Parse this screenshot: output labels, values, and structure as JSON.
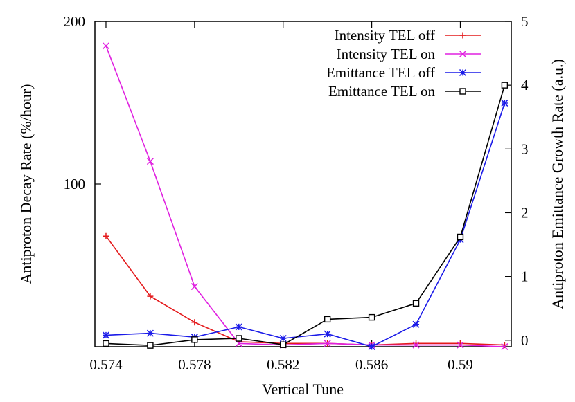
{
  "chart_data": {
    "type": "line",
    "xlabel": "Vertical Tune",
    "ylabel_left": "Antiproton Decay Rate (%/hour)",
    "ylabel_right": "Antiproton Emittance Growth Rate (a.u.)",
    "xlim": [
      0.5735,
      0.5923
    ],
    "ylim_left": [
      0,
      200
    ],
    "ylim_right": [
      -0.1,
      5
    ],
    "xticks": [
      0.574,
      0.578,
      0.582,
      0.586,
      0.59
    ],
    "xtick_labels": [
      "0.574",
      "0.578",
      "0.582",
      "0.586",
      "0.59"
    ],
    "yticks_left": [
      100,
      200
    ],
    "ytick_labels_left": [
      "100",
      "200"
    ],
    "yticks_right": [
      0,
      1,
      2,
      3,
      4,
      5
    ],
    "ytick_labels_right": [
      "0",
      "1",
      "2",
      "3",
      "4",
      "5"
    ],
    "grid": false,
    "legend_position": "top-right",
    "series": [
      {
        "name": "Intensity TEL off",
        "axis": "left",
        "color": "#e41a1c",
        "marker": "plus",
        "x": [
          0.574,
          0.576,
          0.578,
          0.58,
          0.582,
          0.584,
          0.586,
          0.588,
          0.59,
          0.592
        ],
        "y": [
          68,
          31,
          15,
          3,
          2,
          2,
          1,
          2,
          2,
          1
        ]
      },
      {
        "name": "Intensity TEL on",
        "axis": "left",
        "color": "#e020e0",
        "marker": "cross",
        "x": [
          0.574,
          0.576,
          0.578,
          0.58,
          0.582,
          0.584,
          0.586,
          0.588,
          0.59,
          0.592
        ],
        "y": [
          185,
          114,
          37,
          2,
          1,
          2,
          1,
          1,
          1,
          0
        ]
      },
      {
        "name": "Emittance TEL off",
        "axis": "right",
        "color": "#1a1ae8",
        "marker": "star",
        "x": [
          0.574,
          0.576,
          0.578,
          0.58,
          0.582,
          0.584,
          0.586,
          0.588,
          0.59,
          0.592
        ],
        "y": [
          0.08,
          0.11,
          0.05,
          0.21,
          0.03,
          0.1,
          -0.1,
          0.25,
          1.58,
          3.72
        ]
      },
      {
        "name": "Emittance TEL on",
        "axis": "right",
        "color": "#000000",
        "marker": "square",
        "x": [
          0.574,
          0.576,
          0.578,
          0.58,
          0.582,
          0.584,
          0.586,
          0.588,
          0.59,
          0.592
        ],
        "y": [
          -0.05,
          -0.08,
          0.01,
          0.03,
          -0.07,
          0.33,
          0.36,
          0.58,
          1.62,
          4.0
        ]
      }
    ]
  }
}
